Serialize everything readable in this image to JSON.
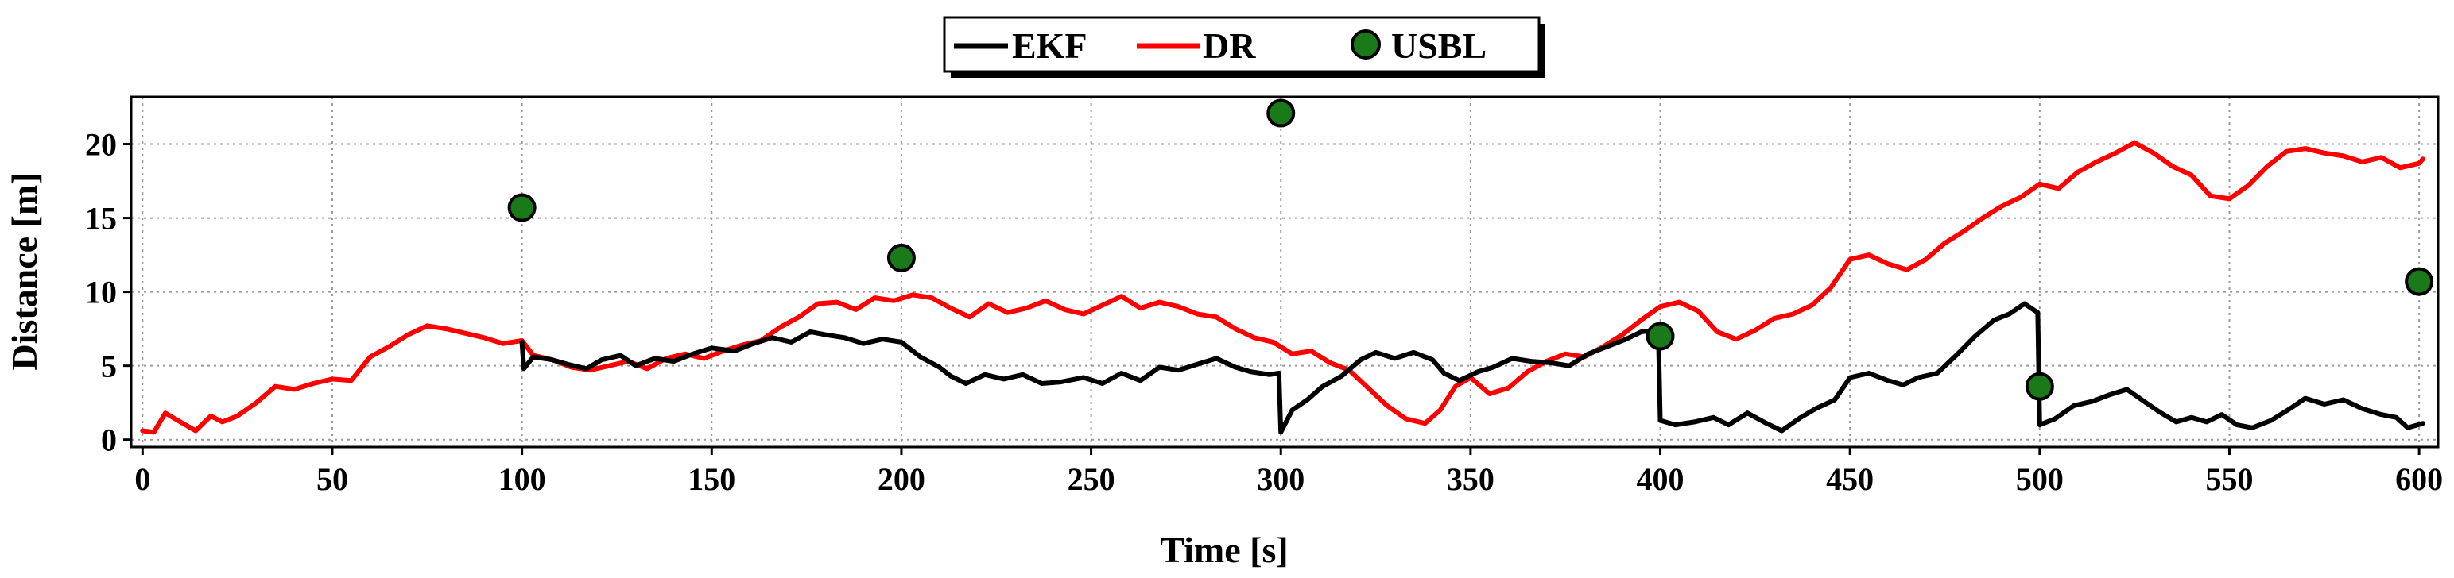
{
  "chart_data": {
    "type": "line",
    "title": "",
    "xlabel": "Time [s]",
    "ylabel": "Distance [m]",
    "xlim": [
      -3,
      605
    ],
    "ylim": [
      -0.5,
      23.2
    ],
    "x_ticks": [
      0,
      50,
      100,
      150,
      200,
      250,
      300,
      350,
      400,
      450,
      500,
      550,
      600
    ],
    "y_ticks": [
      0,
      5,
      10,
      15,
      20
    ],
    "grid": true,
    "legend_position": "top-center",
    "colors": {
      "EKF": "#000000",
      "DR": "#ff0000",
      "USBL_fill": "#1a7a1a",
      "USBL_edge": "#000000"
    },
    "series": [
      {
        "name": "EKF",
        "kind": "line",
        "points": [
          [
            100,
            6.6
          ],
          [
            100.5,
            4.8
          ],
          [
            103,
            5.6
          ],
          [
            108,
            5.4
          ],
          [
            112,
            5.1
          ],
          [
            117,
            4.8
          ],
          [
            121,
            5.4
          ],
          [
            126,
            5.7
          ],
          [
            130,
            5.0
          ],
          [
            135,
            5.5
          ],
          [
            140,
            5.3
          ],
          [
            145,
            5.8
          ],
          [
            150,
            6.2
          ],
          [
            156,
            6.0
          ],
          [
            161,
            6.5
          ],
          [
            166,
            6.9
          ],
          [
            171,
            6.6
          ],
          [
            176,
            7.3
          ],
          [
            180,
            7.1
          ],
          [
            185,
            6.9
          ],
          [
            190,
            6.5
          ],
          [
            195,
            6.8
          ],
          [
            200,
            6.6
          ],
          [
            205,
            5.6
          ],
          [
            210,
            4.9
          ],
          [
            213,
            4.3
          ],
          [
            217,
            3.8
          ],
          [
            222,
            4.4
          ],
          [
            227,
            4.1
          ],
          [
            232,
            4.4
          ],
          [
            237,
            3.8
          ],
          [
            242,
            3.9
          ],
          [
            248,
            4.2
          ],
          [
            253,
            3.8
          ],
          [
            258,
            4.5
          ],
          [
            263,
            4.0
          ],
          [
            268,
            4.9
          ],
          [
            273,
            4.7
          ],
          [
            278,
            5.1
          ],
          [
            283,
            5.5
          ],
          [
            288,
            4.9
          ],
          [
            292,
            4.6
          ],
          [
            297,
            4.4
          ],
          [
            299.5,
            4.5
          ],
          [
            300,
            0.5
          ],
          [
            303,
            2.0
          ],
          [
            307,
            2.7
          ],
          [
            311,
            3.6
          ],
          [
            316,
            4.3
          ],
          [
            321,
            5.4
          ],
          [
            325,
            5.9
          ],
          [
            330,
            5.5
          ],
          [
            335,
            5.9
          ],
          [
            340,
            5.4
          ],
          [
            343,
            4.5
          ],
          [
            347,
            4.0
          ],
          [
            352,
            4.6
          ],
          [
            356,
            4.9
          ],
          [
            361,
            5.5
          ],
          [
            366,
            5.3
          ],
          [
            371,
            5.2
          ],
          [
            376,
            5.0
          ],
          [
            381,
            5.8
          ],
          [
            386,
            6.3
          ],
          [
            391,
            6.8
          ],
          [
            395,
            7.3
          ],
          [
            399.5,
            7.4
          ],
          [
            400,
            1.3
          ],
          [
            404,
            1.0
          ],
          [
            409,
            1.2
          ],
          [
            414,
            1.5
          ],
          [
            418,
            1.0
          ],
          [
            423,
            1.8
          ],
          [
            428,
            1.1
          ],
          [
            432,
            0.6
          ],
          [
            437,
            1.5
          ],
          [
            441,
            2.1
          ],
          [
            446,
            2.7
          ],
          [
            450,
            4.2
          ],
          [
            455,
            4.5
          ],
          [
            460,
            4.0
          ],
          [
            464,
            3.7
          ],
          [
            468,
            4.2
          ],
          [
            473,
            4.5
          ],
          [
            478,
            5.7
          ],
          [
            483,
            7.0
          ],
          [
            488,
            8.1
          ],
          [
            492,
            8.5
          ],
          [
            496,
            9.2
          ],
          [
            499.5,
            8.6
          ],
          [
            500,
            1.0
          ],
          [
            504,
            1.4
          ],
          [
            509,
            2.3
          ],
          [
            514,
            2.6
          ],
          [
            518,
            3.0
          ],
          [
            523,
            3.4
          ],
          [
            528,
            2.5
          ],
          [
            532,
            1.8
          ],
          [
            536,
            1.2
          ],
          [
            540,
            1.5
          ],
          [
            544,
            1.2
          ],
          [
            548,
            1.7
          ],
          [
            552,
            1.0
          ],
          [
            556,
            0.8
          ],
          [
            561,
            1.3
          ],
          [
            566,
            2.1
          ],
          [
            570,
            2.8
          ],
          [
            575,
            2.4
          ],
          [
            580,
            2.7
          ],
          [
            585,
            2.1
          ],
          [
            590,
            1.7
          ],
          [
            594,
            1.5
          ],
          [
            597,
            0.8
          ],
          [
            601,
            1.1
          ]
        ]
      },
      {
        "name": "DR",
        "kind": "line",
        "points": [
          [
            0,
            0.6
          ],
          [
            3,
            0.5
          ],
          [
            6,
            1.8
          ],
          [
            10,
            1.2
          ],
          [
            14,
            0.6
          ],
          [
            18,
            1.6
          ],
          [
            21,
            1.2
          ],
          [
            25,
            1.6
          ],
          [
            30,
            2.5
          ],
          [
            35,
            3.6
          ],
          [
            40,
            3.4
          ],
          [
            45,
            3.8
          ],
          [
            50,
            4.1
          ],
          [
            55,
            4.0
          ],
          [
            60,
            5.6
          ],
          [
            65,
            6.3
          ],
          [
            70,
            7.1
          ],
          [
            75,
            7.7
          ],
          [
            80,
            7.5
          ],
          [
            85,
            7.2
          ],
          [
            90,
            6.9
          ],
          [
            95,
            6.5
          ],
          [
            100,
            6.7
          ],
          [
            103,
            5.7
          ],
          [
            108,
            5.4
          ],
          [
            113,
            4.9
          ],
          [
            118,
            4.7
          ],
          [
            123,
            5.0
          ],
          [
            128,
            5.3
          ],
          [
            133,
            4.8
          ],
          [
            138,
            5.5
          ],
          [
            143,
            5.8
          ],
          [
            148,
            5.5
          ],
          [
            153,
            6.0
          ],
          [
            158,
            6.4
          ],
          [
            163,
            6.7
          ],
          [
            168,
            7.6
          ],
          [
            173,
            8.3
          ],
          [
            178,
            9.2
          ],
          [
            183,
            9.3
          ],
          [
            188,
            8.8
          ],
          [
            193,
            9.6
          ],
          [
            198,
            9.4
          ],
          [
            203,
            9.8
          ],
          [
            208,
            9.6
          ],
          [
            213,
            8.9
          ],
          [
            218,
            8.3
          ],
          [
            223,
            9.2
          ],
          [
            228,
            8.6
          ],
          [
            233,
            8.9
          ],
          [
            238,
            9.4
          ],
          [
            243,
            8.8
          ],
          [
            248,
            8.5
          ],
          [
            253,
            9.1
          ],
          [
            258,
            9.7
          ],
          [
            263,
            8.9
          ],
          [
            268,
            9.3
          ],
          [
            273,
            9.0
          ],
          [
            278,
            8.5
          ],
          [
            283,
            8.3
          ],
          [
            288,
            7.5
          ],
          [
            293,
            6.9
          ],
          [
            298,
            6.6
          ],
          [
            303,
            5.8
          ],
          [
            308,
            6.0
          ],
          [
            313,
            5.2
          ],
          [
            318,
            4.7
          ],
          [
            323,
            3.5
          ],
          [
            328,
            2.3
          ],
          [
            333,
            1.4
          ],
          [
            338,
            1.1
          ],
          [
            342,
            2.0
          ],
          [
            346,
            3.6
          ],
          [
            350,
            4.2
          ],
          [
            355,
            3.1
          ],
          [
            360,
            3.5
          ],
          [
            365,
            4.6
          ],
          [
            370,
            5.3
          ],
          [
            375,
            5.8
          ],
          [
            380,
            5.6
          ],
          [
            385,
            6.3
          ],
          [
            390,
            7.1
          ],
          [
            395,
            8.1
          ],
          [
            400,
            9.0
          ],
          [
            405,
            9.3
          ],
          [
            410,
            8.7
          ],
          [
            415,
            7.3
          ],
          [
            420,
            6.8
          ],
          [
            425,
            7.4
          ],
          [
            430,
            8.2
          ],
          [
            435,
            8.5
          ],
          [
            440,
            9.1
          ],
          [
            445,
            10.3
          ],
          [
            450,
            12.2
          ],
          [
            455,
            12.5
          ],
          [
            460,
            11.9
          ],
          [
            465,
            11.5
          ],
          [
            470,
            12.2
          ],
          [
            475,
            13.3
          ],
          [
            480,
            14.1
          ],
          [
            485,
            15.0
          ],
          [
            490,
            15.8
          ],
          [
            495,
            16.4
          ],
          [
            500,
            17.3
          ],
          [
            505,
            17.0
          ],
          [
            510,
            18.1
          ],
          [
            515,
            18.8
          ],
          [
            520,
            19.4
          ],
          [
            525,
            20.1
          ],
          [
            530,
            19.4
          ],
          [
            535,
            18.5
          ],
          [
            540,
            17.9
          ],
          [
            545,
            16.5
          ],
          [
            550,
            16.3
          ],
          [
            555,
            17.2
          ],
          [
            560,
            18.5
          ],
          [
            565,
            19.5
          ],
          [
            570,
            19.7
          ],
          [
            575,
            19.4
          ],
          [
            580,
            19.2
          ],
          [
            585,
            18.8
          ],
          [
            590,
            19.1
          ],
          [
            595,
            18.4
          ],
          [
            600,
            18.7
          ],
          [
            601,
            19.0
          ]
        ]
      },
      {
        "name": "USBL",
        "kind": "scatter",
        "points": [
          [
            100,
            15.7
          ],
          [
            200,
            12.3
          ],
          [
            300,
            22.1
          ],
          [
            400,
            7.0
          ],
          [
            500,
            3.6
          ],
          [
            600,
            10.7
          ]
        ]
      }
    ]
  }
}
